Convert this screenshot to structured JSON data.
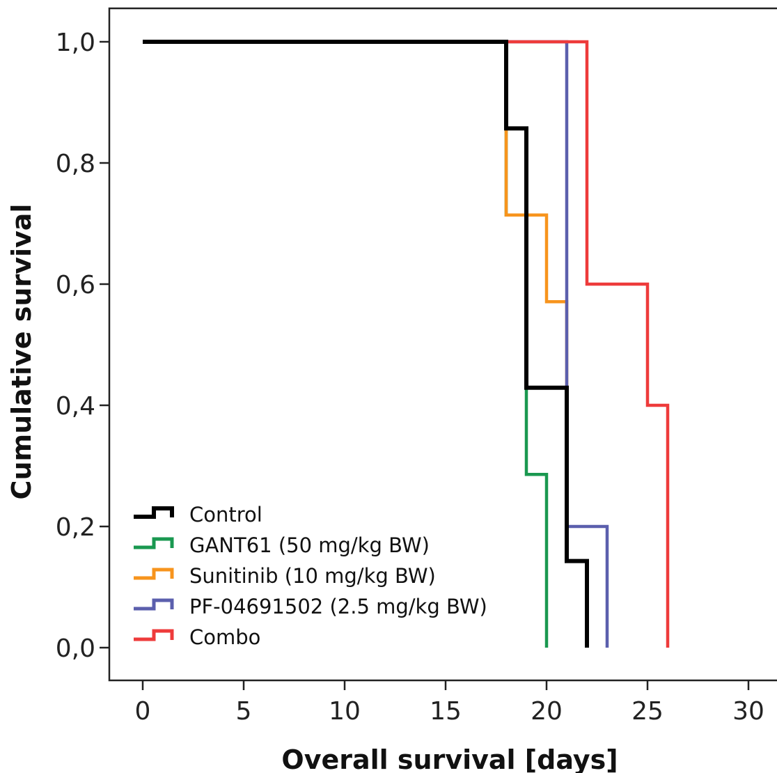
{
  "chart_data": {
    "type": "line",
    "subtype": "kaplan-meier step",
    "xlabel": "Overall survival [days]",
    "ylabel": "Cumulative survival",
    "xlim": [
      -1.7,
      30.5
    ],
    "ylim": [
      -0.05,
      1.05
    ],
    "x_ticks": [
      0,
      5,
      10,
      15,
      20,
      25,
      30
    ],
    "x_tick_labels": [
      "0",
      "5",
      "10",
      "15",
      "20",
      "25",
      "30"
    ],
    "y_ticks": [
      0,
      0.2,
      0.4,
      0.6,
      0.8,
      1.0
    ],
    "y_tick_labels": [
      "0,0",
      "0,2",
      "0,4",
      "0,6",
      "0,8",
      "1,0"
    ],
    "grid": false,
    "legend_position": "bottom-left",
    "series": [
      {
        "name": "Control",
        "color": "#000000",
        "x": [
          0,
          18,
          18,
          19,
          19,
          21,
          21,
          22,
          22
        ],
        "y": [
          1.0,
          1.0,
          0.857,
          0.857,
          0.429,
          0.429,
          0.143,
          0.143,
          0.0
        ]
      },
      {
        "name": "GANT61 (50 mg/kg BW)",
        "color": "#1a9850",
        "x": [
          0,
          18,
          18,
          19,
          19,
          20,
          20
        ],
        "y": [
          1.0,
          1.0,
          0.714,
          0.714,
          0.286,
          0.286,
          0.0
        ]
      },
      {
        "name": "Sunitinib (10 mg/kg BW)",
        "color": "#f7941d",
        "x": [
          0,
          18,
          18,
          20,
          20,
          21,
          21,
          22,
          22
        ],
        "y": [
          1.0,
          1.0,
          0.714,
          0.714,
          0.571,
          0.571,
          0.143,
          0.143,
          0.0
        ]
      },
      {
        "name": "PF-04691502 (2.5 mg/kg BW)",
        "color": "#5b5fad",
        "x": [
          0,
          21,
          21,
          23,
          23
        ],
        "y": [
          1.0,
          1.0,
          0.2,
          0.2,
          0.0
        ]
      },
      {
        "name": "Combo",
        "color": "#ee3b3b",
        "x": [
          0,
          22,
          22,
          25,
          25,
          26,
          26
        ],
        "y": [
          1.0,
          1.0,
          0.6,
          0.6,
          0.4,
          0.4,
          0.0
        ]
      }
    ]
  }
}
